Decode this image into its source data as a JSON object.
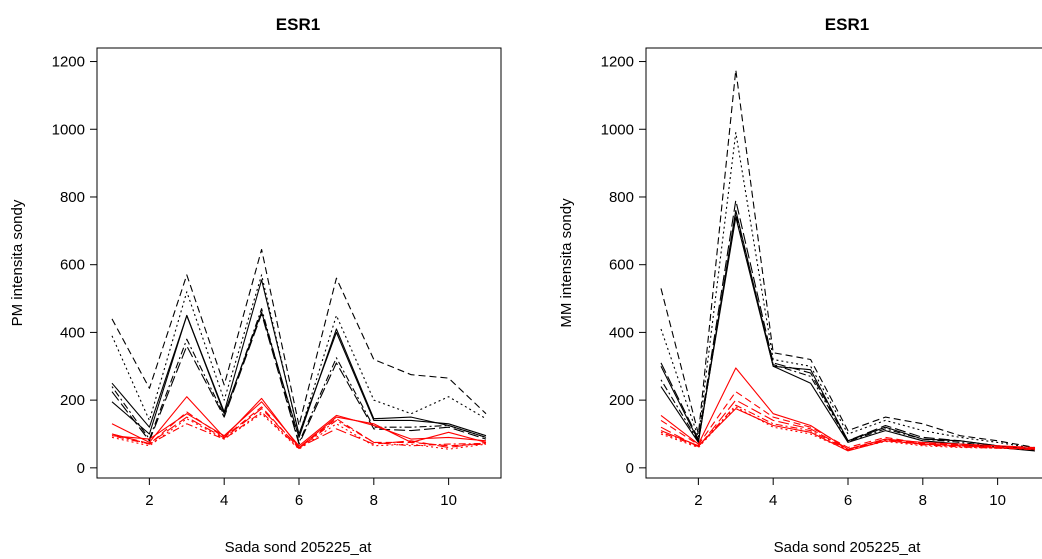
{
  "chart_data": [
    {
      "type": "line",
      "title": "ESR1",
      "xlabel": "Sada sond 205225_at",
      "ylabel": "PM intensita sondy",
      "xlim": [
        0.6,
        11.4
      ],
      "ylim": [
        -30,
        1240
      ],
      "xticks": [
        2,
        4,
        6,
        8,
        10
      ],
      "yticks": [
        0,
        200,
        400,
        600,
        800,
        1000,
        1200
      ],
      "x": [
        1,
        2,
        3,
        4,
        5,
        6,
        7,
        8,
        9,
        10,
        11
      ],
      "grid": false,
      "series": [
        {
          "color": "#000000",
          "dash": "solid",
          "values": [
            250,
            120,
            450,
            160,
            460,
            90,
            410,
            145,
            150,
            125,
            90
          ]
        },
        {
          "color": "#000000",
          "dash": "solid",
          "values": [
            195,
            100,
            450,
            165,
            555,
            100,
            400,
            140,
            140,
            130,
            95
          ]
        },
        {
          "color": "#000000",
          "dash": "dashed",
          "values": [
            440,
            235,
            570,
            245,
            645,
            125,
            560,
            320,
            275,
            265,
            160
          ]
        },
        {
          "color": "#000000",
          "dash": "dotted",
          "values": [
            390,
            140,
            520,
            200,
            570,
            95,
            450,
            200,
            160,
            210,
            145
          ]
        },
        {
          "color": "#000000",
          "dash": "longdash",
          "values": [
            225,
            80,
            360,
            150,
            455,
            70,
            310,
            115,
            110,
            120,
            85
          ]
        },
        {
          "color": "#000000",
          "dash": "dotdash",
          "values": [
            240,
            85,
            380,
            155,
            470,
            75,
            325,
            120,
            120,
            125,
            90
          ]
        },
        {
          "color": "#ff0000",
          "dash": "solid",
          "values": [
            130,
            75,
            210,
            90,
            205,
            60,
            150,
            130,
            75,
            105,
            75
          ]
        },
        {
          "color": "#ff0000",
          "dash": "solid",
          "values": [
            95,
            85,
            160,
            95,
            195,
            65,
            155,
            125,
            85,
            90,
            80
          ]
        },
        {
          "color": "#ff0000",
          "dash": "dashed",
          "values": [
            100,
            70,
            165,
            90,
            180,
            58,
            145,
            75,
            75,
            65,
            70
          ]
        },
        {
          "color": "#ff0000",
          "dash": "dotted",
          "values": [
            90,
            65,
            145,
            85,
            160,
            55,
            130,
            65,
            70,
            55,
            70
          ]
        },
        {
          "color": "#ff0000",
          "dash": "longdash",
          "values": [
            100,
            72,
            150,
            88,
            175,
            60,
            115,
            70,
            80,
            60,
            75
          ]
        },
        {
          "color": "#ff0000",
          "dash": "dotdash",
          "values": [
            95,
            70,
            130,
            85,
            165,
            57,
            140,
            75,
            65,
            70,
            72
          ]
        }
      ]
    },
    {
      "type": "line",
      "title": "ESR1",
      "xlabel": "Sada sond 205225_at",
      "ylabel": "MM intensita sondy",
      "xlim": [
        0.6,
        11.4
      ],
      "ylim": [
        -30,
        1240
      ],
      "xticks": [
        2,
        4,
        6,
        8,
        10
      ],
      "yticks": [
        0,
        200,
        400,
        600,
        800,
        1000,
        1200
      ],
      "x": [
        1,
        2,
        3,
        4,
        5,
        6,
        7,
        8,
        9,
        10,
        11
      ],
      "grid": false,
      "series": [
        {
          "color": "#000000",
          "dash": "solid",
          "values": [
            300,
            80,
            740,
            300,
            290,
            80,
            120,
            85,
            80,
            65,
            55
          ]
        },
        {
          "color": "#000000",
          "dash": "solid",
          "values": [
            240,
            75,
            760,
            300,
            250,
            75,
            110,
            80,
            70,
            60,
            50
          ]
        },
        {
          "color": "#000000",
          "dash": "dashed",
          "values": [
            530,
            100,
            1175,
            340,
            320,
            110,
            150,
            130,
            95,
            80,
            60
          ]
        },
        {
          "color": "#000000",
          "dash": "dotted",
          "values": [
            410,
            90,
            990,
            320,
            300,
            100,
            140,
            110,
            90,
            75,
            58
          ]
        },
        {
          "color": "#000000",
          "dash": "longdash",
          "values": [
            310,
            85,
            790,
            310,
            280,
            80,
            125,
            90,
            80,
            65,
            55
          ]
        },
        {
          "color": "#000000",
          "dash": "dotdash",
          "values": [
            260,
            78,
            750,
            305,
            270,
            78,
            115,
            85,
            75,
            62,
            52
          ]
        },
        {
          "color": "#ff0000",
          "dash": "solid",
          "values": [
            155,
            70,
            295,
            160,
            125,
            55,
            85,
            75,
            70,
            65,
            60
          ]
        },
        {
          "color": "#ff0000",
          "dash": "solid",
          "values": [
            110,
            65,
            175,
            125,
            105,
            50,
            80,
            70,
            65,
            60,
            55
          ]
        },
        {
          "color": "#ff0000",
          "dash": "dashed",
          "values": [
            140,
            68,
            225,
            150,
            120,
            60,
            90,
            72,
            68,
            62,
            58
          ]
        },
        {
          "color": "#ff0000",
          "dash": "dotted",
          "values": [
            100,
            60,
            180,
            120,
            100,
            52,
            78,
            65,
            60,
            58,
            55
          ]
        },
        {
          "color": "#ff0000",
          "dash": "longdash",
          "values": [
            120,
            62,
            200,
            140,
            115,
            55,
            85,
            70,
            65,
            60,
            56
          ]
        },
        {
          "color": "#ff0000",
          "dash": "dotdash",
          "values": [
            105,
            63,
            185,
            130,
            110,
            53,
            82,
            68,
            62,
            58,
            54
          ]
        }
      ]
    }
  ]
}
